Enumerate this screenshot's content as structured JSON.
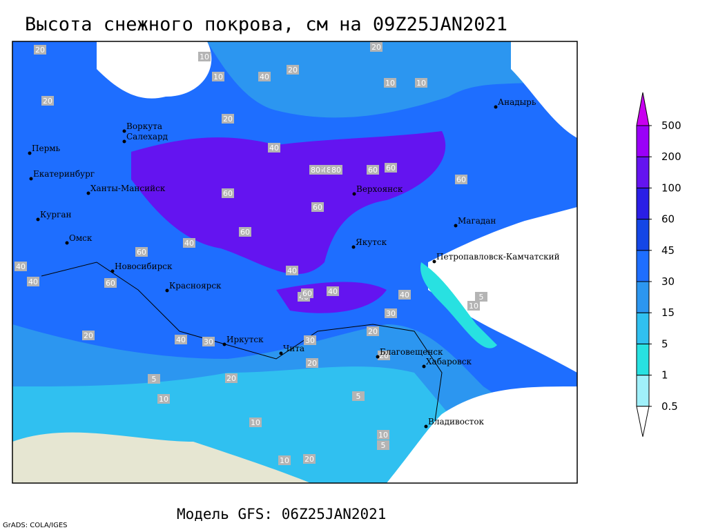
{
  "title": "Высота снежного покрова, см на 09Z25JAN2021",
  "footer": "Модель GFS: 06Z25JAN2021",
  "credit": "GrADS: COLA/IGES",
  "colorbar": {
    "levels": [
      0.5,
      1,
      5,
      15,
      30,
      45,
      60,
      100,
      200,
      500
    ],
    "colors": [
      "#ffffff",
      "#a0f0fa",
      "#28e1e1",
      "#30c0f0",
      "#2c96f0",
      "#1e6eff",
      "#1446e6",
      "#2a1ee6",
      "#6414f0",
      "#9a00f8",
      "#c800f0"
    ]
  },
  "cities": [
    "Воркута",
    "Салехард",
    "Пермь",
    "Екатеринбург",
    "Ханты-Мансийск",
    "Курган",
    "Омск",
    "Новосибирск",
    "Красноярск",
    "Иркутск",
    "Чита",
    "Благовещенск",
    "Хабаровск",
    "Владивосток",
    "Якутск",
    "Верхоянск",
    "Магадан",
    "Петропавловск-Камчатский",
    "Анадырь"
  ],
  "contour_labels": [
    20,
    20,
    20,
    10,
    40,
    20,
    10,
    10,
    10,
    20,
    40,
    60,
    80,
    80,
    60,
    60,
    60,
    60,
    60,
    80,
    60,
    40,
    60,
    40,
    40,
    40,
    60,
    40,
    40,
    30,
    20,
    20,
    20,
    10,
    5,
    10,
    20,
    5,
    10,
    10,
    20,
    40,
    60,
    40,
    30,
    30,
    20,
    5,
    10,
    5
  ]
}
